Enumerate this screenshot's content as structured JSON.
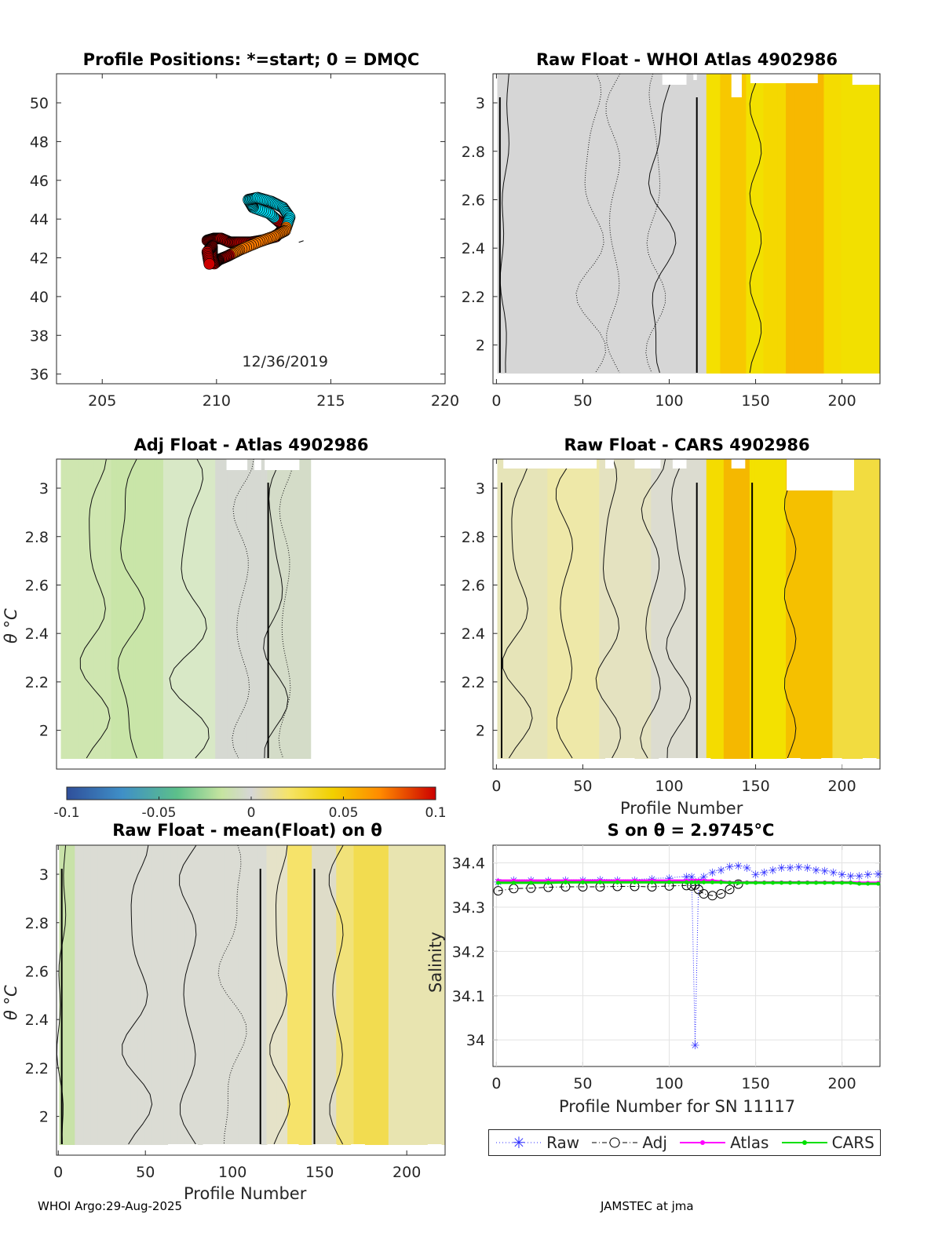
{
  "panels": {
    "positions": {
      "title": "Profile Positions: *=start; 0 = DMQC",
      "date_label": "12/36/2019"
    },
    "raw_whoi": {
      "title": "Raw Float - WHOI Atlas  4902986"
    },
    "adj_atlas": {
      "title": "Adj Float - Atlas  4902986",
      "ylabel": "θ °C"
    },
    "raw_cars": {
      "title": "Raw Float - CARS  4902986",
      "xlabel": "Profile Number"
    },
    "raw_mean": {
      "title": "Raw Float - mean(Float) on θ",
      "ylabel": "θ °C",
      "xlabel": "Profile Number"
    },
    "salinity": {
      "title": "S on θ = 2.9745°C",
      "xlabel": "Profile Number for SN 11117",
      "ylabel": "Salinity"
    }
  },
  "colorbar": {
    "ticks": [
      "-0.1",
      "-0.05",
      "0",
      "0.05",
      "0.1"
    ]
  },
  "legend": {
    "raw": "Raw",
    "adj": "Adj",
    "atlas": "Atlas",
    "cars": "CARS"
  },
  "footer": {
    "left": "WHOI Argo:29-Aug-2025",
    "right": "JAMSTEC at jma"
  },
  "colors": {
    "raw": "#2b2bff",
    "adj": "#000000",
    "atlas": "#ff00ff",
    "cars": "#00e000",
    "grey": "#d6d6d6",
    "yellow": "#f2e000",
    "orange": "#ffb400"
  },
  "chart_data": [
    {
      "type": "scatter",
      "name": "positions",
      "title": "Profile Positions: *=start; 0 = DMQC",
      "xlim": [
        203,
        220
      ],
      "ylim": [
        35.5,
        51.5
      ],
      "xticks": [
        205,
        210,
        215,
        220
      ],
      "yticks": [
        36,
        38,
        40,
        42,
        44,
        46,
        48,
        50
      ],
      "track_lon": [
        209.6,
        209.9,
        210.2,
        210.6,
        211.0,
        211.5,
        212.0,
        212.6,
        213.0,
        212.7,
        212.3,
        211.6,
        211.4,
        211.8,
        212.4,
        212.9,
        213.2,
        213.0,
        212.5,
        211.8,
        211.0,
        210.5,
        210.1,
        209.9,
        209.8,
        209.8,
        209.6,
        209.7
      ],
      "track_lat": [
        42.9,
        43.0,
        43.0,
        42.8,
        42.8,
        42.8,
        42.9,
        43.1,
        43.6,
        43.9,
        44.3,
        44.6,
        45.0,
        45.1,
        44.9,
        44.6,
        44.1,
        43.4,
        43.1,
        42.8,
        42.4,
        42.1,
        41.9,
        41.7,
        42.1,
        42.6,
        42.3,
        41.6
      ],
      "note": "colored by profile index; red=late, cyan/blue=early"
    },
    {
      "type": "heatmap",
      "name": "raw_whoi",
      "title": "Raw Float - WHOI Atlas  4902986",
      "xlim": [
        -2,
        222
      ],
      "ylim": [
        1.84,
        3.12
      ],
      "xticks": [
        0,
        50,
        100,
        150,
        200
      ],
      "yticks": [
        2,
        2.2,
        2.4,
        2.6,
        2.8,
        3
      ]
    },
    {
      "type": "heatmap",
      "name": "adj_atlas",
      "title": "Adj Float - Atlas  4902986",
      "xlim": [
        -2,
        222
      ],
      "ylim": [
        1.84,
        3.12
      ],
      "yticks": [
        2,
        2.2,
        2.4,
        2.6,
        2.8,
        3
      ]
    },
    {
      "type": "heatmap",
      "name": "raw_cars",
      "title": "Raw Float - CARS  4902986",
      "xlim": [
        -2,
        222
      ],
      "ylim": [
        1.84,
        3.12
      ],
      "xticks": [
        0,
        50,
        100,
        150,
        200
      ],
      "yticks": [
        2,
        2.2,
        2.4,
        2.6,
        2.8,
        3
      ],
      "xlabel": "Profile Number"
    },
    {
      "type": "heatmap",
      "name": "raw_mean",
      "title": "Raw Float - mean(Float) on θ",
      "xlim": [
        -1,
        222
      ],
      "ylim": [
        1.84,
        3.12
      ],
      "xticks": [
        0,
        50,
        100,
        150,
        200
      ],
      "yticks": [
        2,
        2.2,
        2.4,
        2.6,
        2.8,
        3
      ],
      "xlabel": "Profile Number"
    },
    {
      "type": "line",
      "name": "salinity",
      "title": "S on θ = 2.9745°C",
      "xlim": [
        -2,
        222
      ],
      "ylim": [
        33.94,
        34.44
      ],
      "xticks": [
        0,
        50,
        100,
        150,
        200
      ],
      "yticks": [
        34,
        34.1,
        34.2,
        34.3,
        34.4
      ],
      "xlabel": "Profile Number for SN 11117",
      "ylabel": "Salinity",
      "x": [
        1,
        10,
        20,
        30,
        40,
        50,
        60,
        70,
        80,
        90,
        100,
        110,
        113,
        115,
        117,
        120,
        125,
        130,
        135,
        140,
        145,
        150,
        155,
        160,
        165,
        170,
        175,
        180,
        185,
        190,
        195,
        200,
        205,
        210,
        215,
        221
      ],
      "series": [
        {
          "name": "Raw",
          "values": [
            34.358,
            34.362,
            34.362,
            34.361,
            34.362,
            34.362,
            34.363,
            34.362,
            34.362,
            34.365,
            34.366,
            34.37,
            34.37,
            33.99,
            34.36,
            34.37,
            34.38,
            34.385,
            34.393,
            34.395,
            34.39,
            34.375,
            34.38,
            34.385,
            34.39,
            34.39,
            34.392,
            34.39,
            34.385,
            34.383,
            34.38,
            34.375,
            34.372,
            34.372,
            34.375,
            34.376
          ]
        },
        {
          "name": "Adj",
          "values": [
            34.337,
            34.342,
            34.343,
            34.345,
            34.346,
            34.346,
            34.346,
            34.347,
            34.347,
            34.346,
            34.348,
            34.349,
            34.348,
            34.35,
            34.34,
            34.33,
            34.326,
            34.33,
            34.34,
            34.352,
            null,
            null,
            null,
            null,
            null,
            null,
            null,
            null,
            null,
            null,
            null,
            null,
            null,
            null,
            null,
            null
          ]
        },
        {
          "name": "Atlas",
          "values": [
            34.36,
            34.36,
            34.36,
            34.36,
            34.36,
            34.36,
            34.36,
            34.36,
            34.36,
            34.36,
            34.36,
            34.36,
            34.36,
            34.36,
            34.36,
            34.36,
            34.36,
            34.358,
            34.356,
            34.356,
            34.356,
            34.356,
            34.356,
            34.356,
            34.356,
            34.356,
            34.356,
            34.356,
            34.356,
            34.356,
            34.356,
            34.356,
            34.356,
            34.355,
            34.355,
            34.355
          ]
        },
        {
          "name": "CARS",
          "values": [
            34.355,
            34.355,
            34.355,
            34.355,
            34.356,
            34.356,
            34.356,
            34.356,
            34.356,
            34.356,
            34.356,
            34.356,
            34.356,
            34.356,
            34.356,
            34.356,
            34.356,
            34.356,
            34.355,
            34.355,
            34.355,
            34.355,
            34.355,
            34.355,
            34.355,
            34.355,
            34.355,
            34.355,
            34.355,
            34.355,
            34.355,
            34.355,
            34.355,
            34.353,
            34.353,
            34.353
          ]
        }
      ]
    }
  ]
}
